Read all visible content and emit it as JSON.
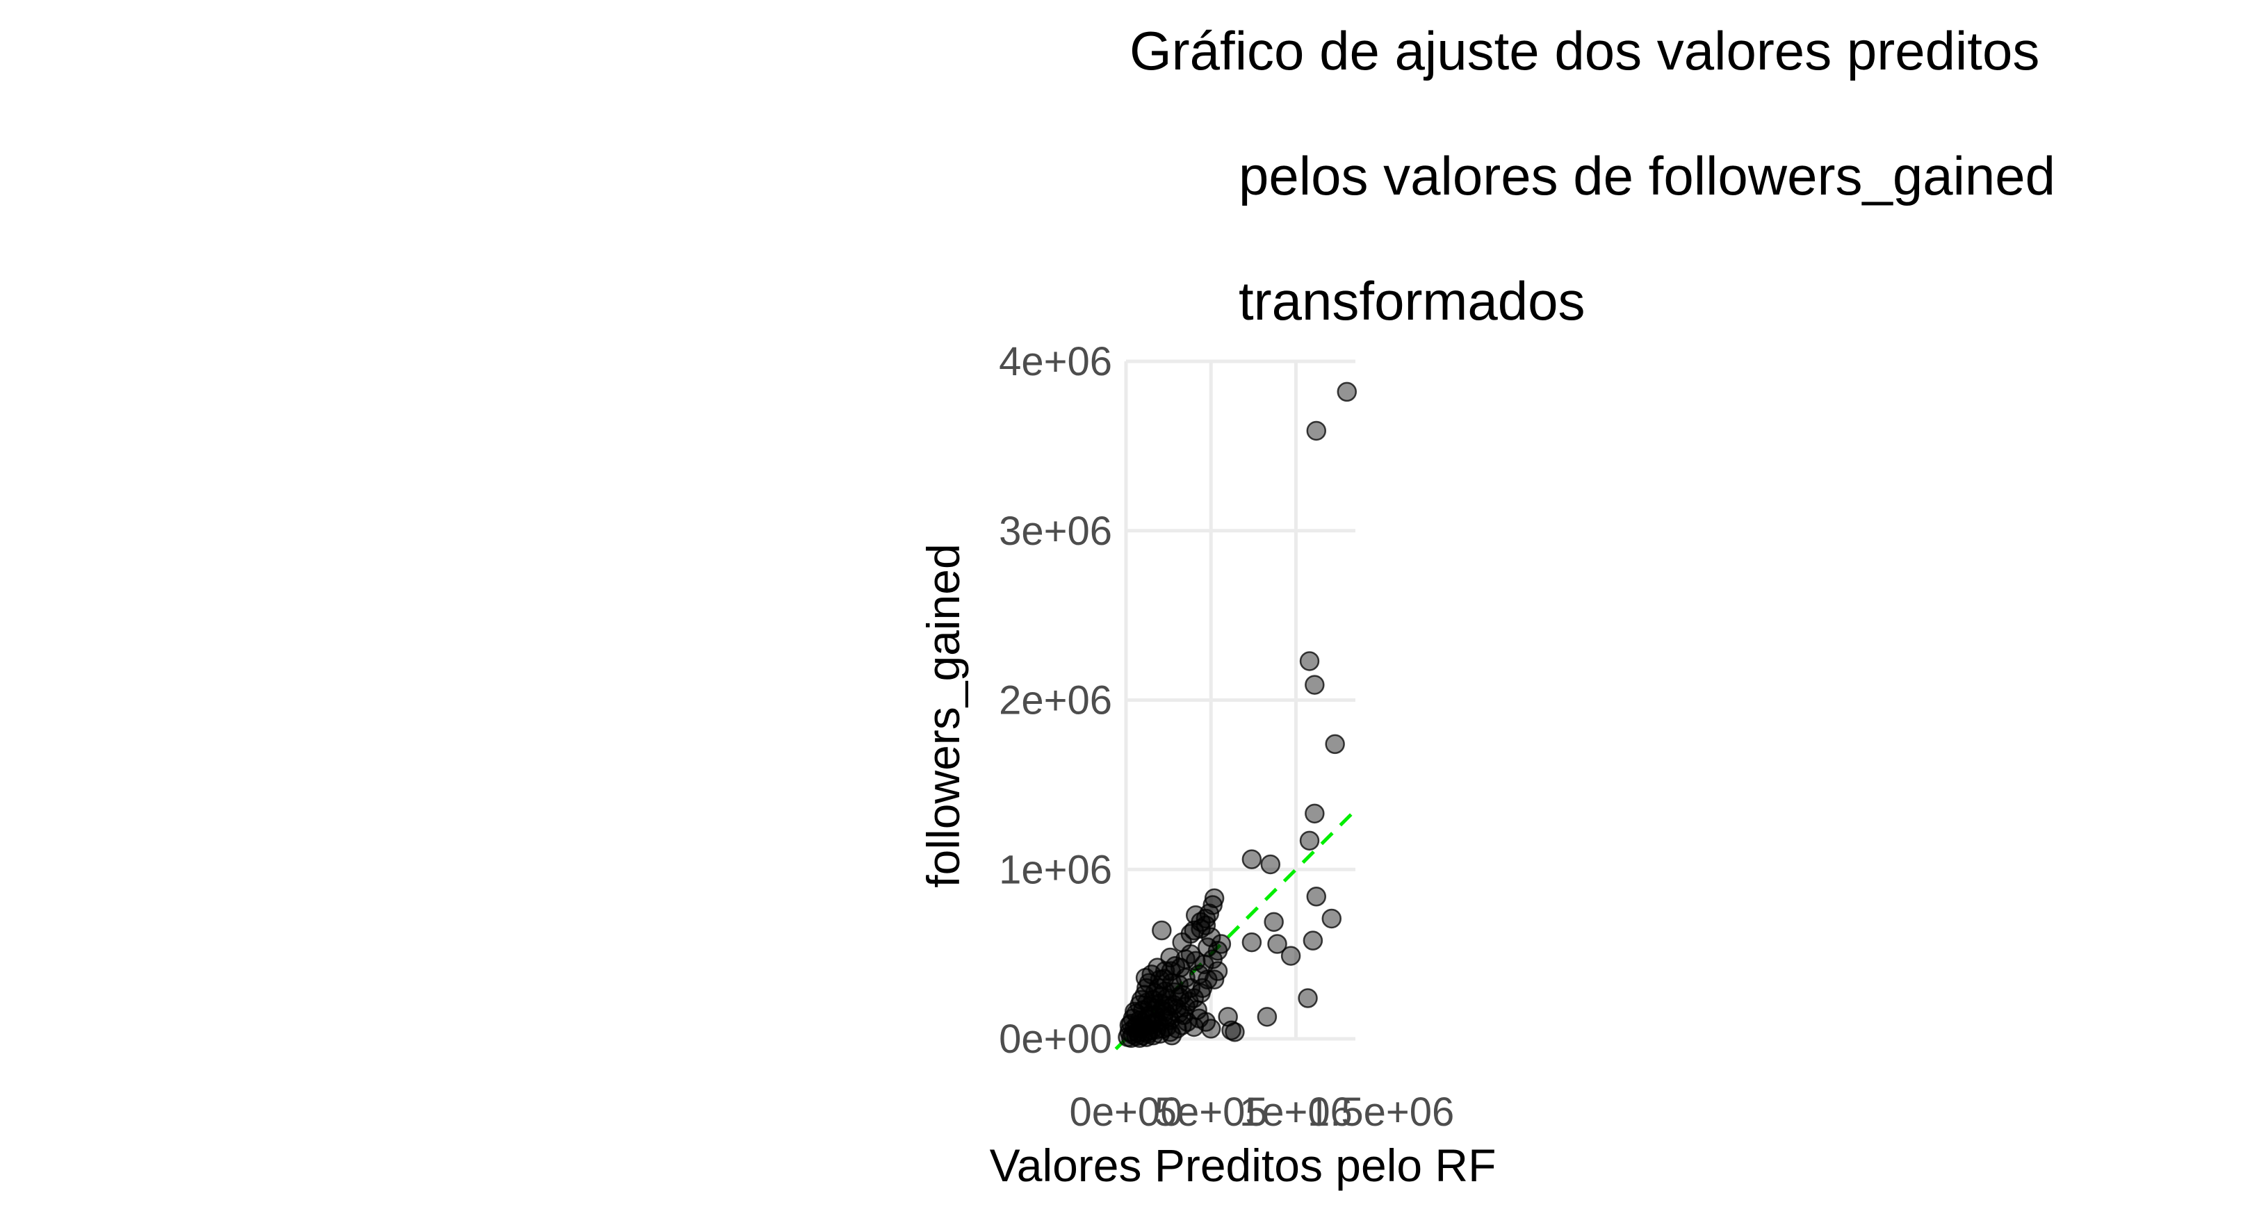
{
  "chart_data": {
    "type": "scatter",
    "title_lines": [
      "Gráfico de ajuste dos valores preditos",
      "pelos valores de followers_gained",
      "transformados"
    ],
    "xlabel": "Valores Preditos pelo RF",
    "ylabel": "followers_gained",
    "xlim": [
      0,
      1350000
    ],
    "ylim": [
      0,
      4000000
    ],
    "x_ticks": [
      {
        "value": 0,
        "label": "0e+00"
      },
      {
        "value": 500000,
        "label": "5e+05"
      },
      {
        "value": 1000000,
        "label": "1e+06"
      },
      {
        "value": 1500000,
        "label": "1.5e+06"
      }
    ],
    "y_ticks": [
      {
        "value": 0,
        "label": "0e+00"
      },
      {
        "value": 1000000,
        "label": "1e+06"
      },
      {
        "value": 2000000,
        "label": "2e+06"
      },
      {
        "value": 3000000,
        "label": "3e+06"
      },
      {
        "value": 4000000,
        "label": "4e+06"
      }
    ],
    "grid": true,
    "reference_line": {
      "slope": 1,
      "intercept": 0,
      "style": "dashed",
      "color": "#00ee00"
    },
    "point_color": "#000000",
    "points": [
      [
        1300000,
        3820000
      ],
      [
        1120000,
        3590000
      ],
      [
        1080000,
        2230000
      ],
      [
        1110000,
        2090000
      ],
      [
        1230000,
        1740000
      ],
      [
        1110000,
        1330000
      ],
      [
        1080000,
        1170000
      ],
      [
        740000,
        1060000
      ],
      [
        850000,
        1030000
      ],
      [
        1120000,
        840000
      ],
      [
        1210000,
        710000
      ],
      [
        870000,
        690000
      ],
      [
        1100000,
        580000
      ],
      [
        740000,
        570000
      ],
      [
        890000,
        560000
      ],
      [
        970000,
        490000
      ],
      [
        1070000,
        240000
      ],
      [
        830000,
        130000
      ],
      [
        520000,
        830000
      ],
      [
        510000,
        790000
      ],
      [
        490000,
        740000
      ],
      [
        410000,
        730000
      ],
      [
        470000,
        710000
      ],
      [
        440000,
        690000
      ],
      [
        470000,
        670000
      ],
      [
        440000,
        650000
      ],
      [
        210000,
        640000
      ],
      [
        400000,
        640000
      ],
      [
        380000,
        620000
      ],
      [
        500000,
        600000
      ],
      [
        330000,
        570000
      ],
      [
        480000,
        540000
      ],
      [
        540000,
        520000
      ],
      [
        260000,
        480000
      ],
      [
        410000,
        460000
      ],
      [
        460000,
        440000
      ],
      [
        320000,
        420000
      ],
      [
        540000,
        400000
      ],
      [
        230000,
        400000
      ],
      [
        150000,
        380000
      ],
      [
        480000,
        350000
      ],
      [
        200000,
        350000
      ],
      [
        310000,
        320000
      ],
      [
        380000,
        300000
      ],
      [
        120000,
        300000
      ],
      [
        440000,
        270000
      ],
      [
        170000,
        270000
      ],
      [
        330000,
        260000
      ],
      [
        240000,
        240000
      ],
      [
        90000,
        230000
      ],
      [
        370000,
        220000
      ],
      [
        200000,
        210000
      ],
      [
        280000,
        200000
      ],
      [
        140000,
        190000
      ],
      [
        100000,
        170000
      ],
      [
        230000,
        160000
      ],
      [
        310000,
        150000
      ],
      [
        60000,
        150000
      ],
      [
        170000,
        140000
      ],
      [
        220000,
        130000
      ],
      [
        120000,
        120000
      ],
      [
        260000,
        110000
      ],
      [
        80000,
        110000
      ],
      [
        360000,
        100000
      ],
      [
        190000,
        95000
      ],
      [
        30000,
        90000
      ],
      [
        150000,
        85000
      ],
      [
        110000,
        75000
      ],
      [
        240000,
        70000
      ],
      [
        50000,
        65000
      ],
      [
        90000,
        60000
      ],
      [
        180000,
        55000
      ],
      [
        330000,
        80000
      ],
      [
        400000,
        70000
      ],
      [
        500000,
        60000
      ],
      [
        600000,
        130000
      ],
      [
        620000,
        50000
      ],
      [
        640000,
        40000
      ],
      [
        20000,
        40000
      ],
      [
        70000,
        35000
      ],
      [
        130000,
        30000
      ],
      [
        40000,
        25000
      ],
      [
        100000,
        20000
      ],
      [
        160000,
        20000
      ],
      [
        60000,
        15000
      ],
      [
        10000,
        10000
      ],
      [
        30000,
        5000
      ],
      [
        80000,
        5000
      ],
      [
        120000,
        10000
      ],
      [
        200000,
        30000
      ],
      [
        150000,
        50000
      ],
      [
        260000,
        40000
      ],
      [
        300000,
        180000
      ],
      [
        350000,
        190000
      ],
      [
        230000,
        280000
      ],
      [
        270000,
        330000
      ],
      [
        190000,
        300000
      ],
      [
        350000,
        360000
      ],
      [
        430000,
        380000
      ],
      [
        290000,
        430000
      ],
      [
        160000,
        230000
      ],
      [
        110000,
        260000
      ],
      [
        80000,
        200000
      ],
      [
        50000,
        160000
      ],
      [
        40000,
        120000
      ],
      [
        20000,
        80000
      ],
      [
        140000,
        140000
      ],
      [
        210000,
        170000
      ],
      [
        250000,
        130000
      ],
      [
        300000,
        60000
      ],
      [
        180000,
        100000
      ],
      [
        340000,
        140000
      ],
      [
        420000,
        170000
      ],
      [
        400000,
        240000
      ],
      [
        450000,
        300000
      ],
      [
        380000,
        500000
      ],
      [
        350000,
        470000
      ],
      [
        510000,
        470000
      ],
      [
        560000,
        560000
      ],
      [
        520000,
        350000
      ],
      [
        470000,
        100000
      ],
      [
        430000,
        120000
      ],
      [
        270000,
        20000
      ],
      [
        220000,
        60000
      ],
      [
        130000,
        45000
      ],
      [
        95000,
        95000
      ],
      [
        65000,
        80000
      ],
      [
        175000,
        180000
      ],
      [
        205000,
        250000
      ],
      [
        125000,
        215000
      ],
      [
        245000,
        195000
      ],
      [
        285000,
        275000
      ],
      [
        315000,
        245000
      ],
      [
        225000,
        355000
      ],
      [
        185000,
        420000
      ],
      [
        265000,
        400000
      ],
      [
        135000,
        330000
      ],
      [
        115000,
        360000
      ]
    ]
  }
}
